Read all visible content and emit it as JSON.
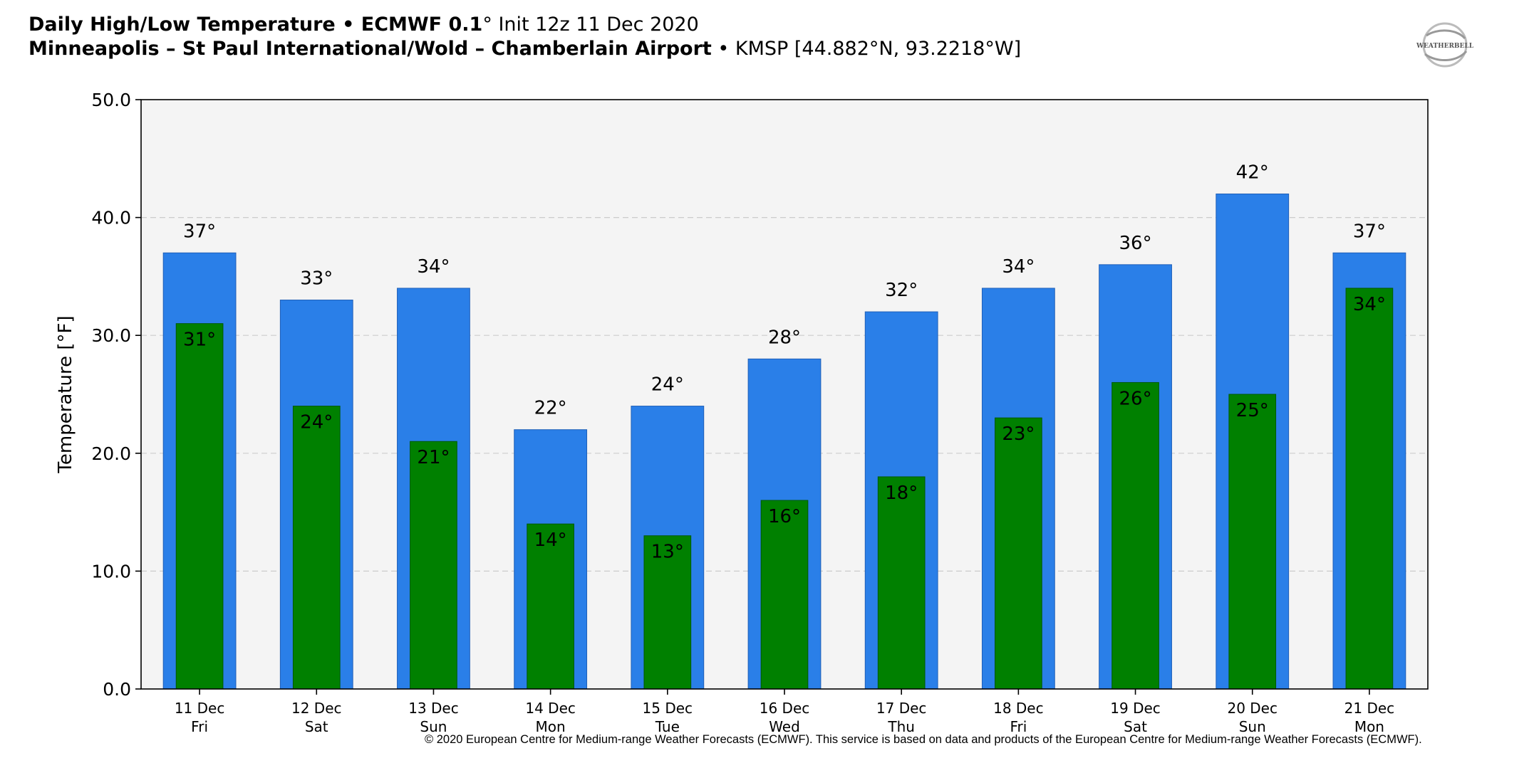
{
  "title": {
    "line1_bold": "Daily High/Low Temperature • ECMWF 0.1",
    "line1_deg": "°",
    "line1_rest": " Init 12z 11 Dec 2020",
    "line2_bold": "Minneapolis – St Paul International/Wold – Chamberlain Airport",
    "line2_rest": " • KMSP [44.882°N, 93.2218°W]"
  },
  "logo_text": "WEATHERBELL",
  "copyright": "© 2020 European Centre for Medium-range Weather Forecasts (ECMWF). This service is based on data and products of the European Centre for Medium-range Weather Forecasts (ECMWF).",
  "colors": {
    "high_bar": "#2a7fe8",
    "low_bar": "#008000",
    "plot_background": "#f4f4f4"
  },
  "chart_data": {
    "type": "bar",
    "ylabel": "Temperature [°F]",
    "ylim": [
      0,
      50
    ],
    "yticks": [
      "0.0",
      "10.0",
      "20.0",
      "30.0",
      "40.0",
      "50.0"
    ],
    "grid": true,
    "categories": [
      "11 Dec",
      "12 Dec",
      "13 Dec",
      "14 Dec",
      "15 Dec",
      "16 Dec",
      "17 Dec",
      "18 Dec",
      "19 Dec",
      "20 Dec",
      "21 Dec"
    ],
    "weekdays": [
      "Fri",
      "Sat",
      "Sun",
      "Mon",
      "Tue",
      "Wed",
      "Thu",
      "Fri",
      "Sat",
      "Sun",
      "Mon"
    ],
    "series": [
      {
        "key": "high",
        "values": [
          37,
          33,
          34,
          22,
          24,
          28,
          32,
          34,
          36,
          42,
          37
        ],
        "labels": [
          "37°",
          "33°",
          "34°",
          "22°",
          "24°",
          "28°",
          "32°",
          "34°",
          "36°",
          "42°",
          "37°"
        ]
      },
      {
        "key": "low",
        "values": [
          31,
          24,
          21,
          14,
          13,
          16,
          18,
          23,
          26,
          25,
          34
        ],
        "labels": [
          "31°",
          "24°",
          "21°",
          "14°",
          "13°",
          "16°",
          "18°",
          "23°",
          "26°",
          "25°",
          "34°"
        ]
      }
    ]
  }
}
